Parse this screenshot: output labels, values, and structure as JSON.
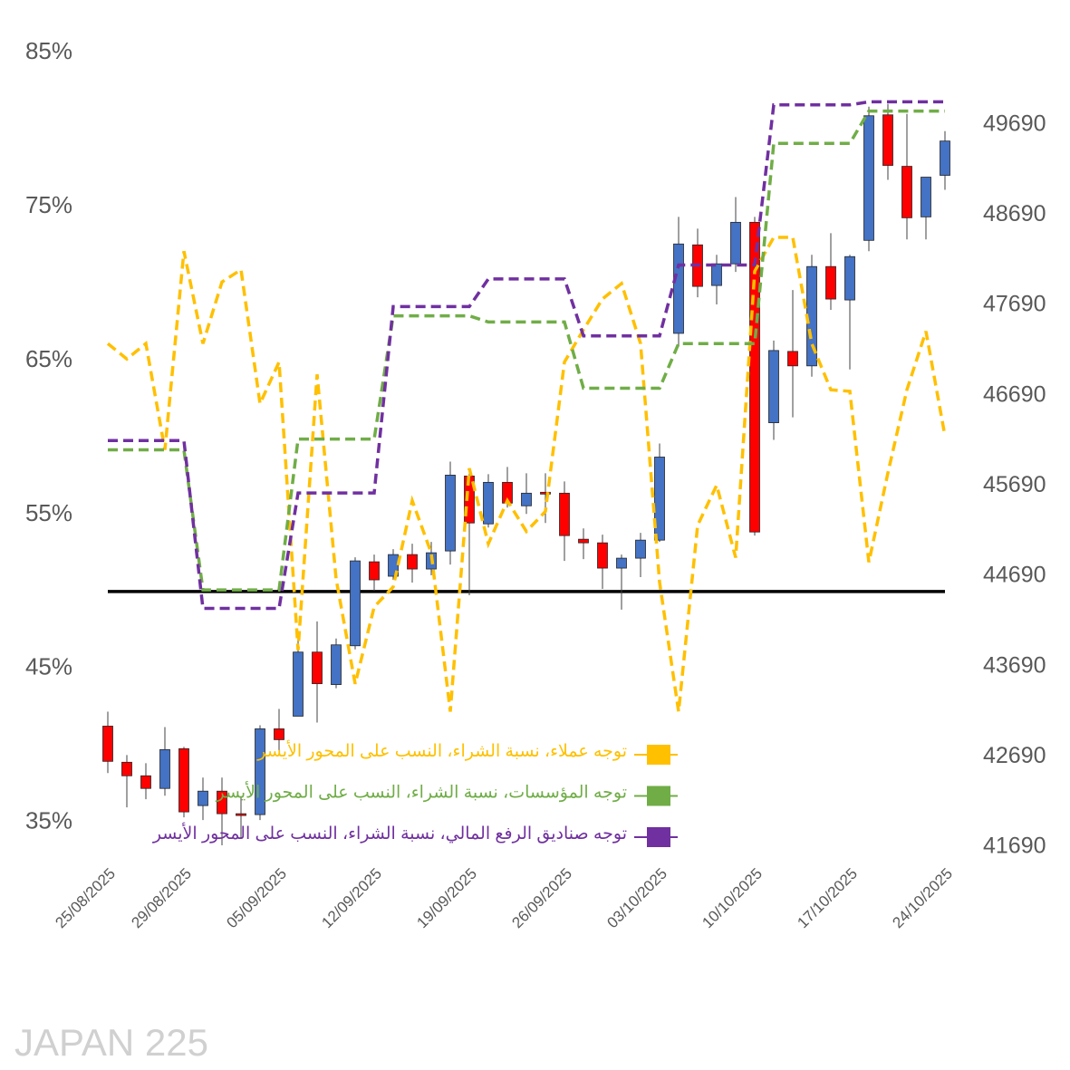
{
  "chart_data": {
    "type": "candlestick",
    "watermark": "JAPAN 225",
    "categories": [
      "25/08/2025",
      null,
      null,
      null,
      "29/08/2025",
      null,
      null,
      null,
      null,
      "05/09/2025",
      null,
      null,
      null,
      null,
      "12/09/2025",
      null,
      null,
      null,
      null,
      "19/09/2025",
      null,
      null,
      null,
      null,
      "26/09/2025",
      null,
      null,
      null,
      null,
      "03/10/2025",
      null,
      null,
      null,
      null,
      "10/10/2025",
      null,
      null,
      null,
      null,
      "17/10/2025",
      null,
      null,
      null,
      null,
      "24/10/2025"
    ],
    "candles": {
      "axis": "y2",
      "up_color": "#4472c4",
      "down_color": "#ff0000",
      "open": [
        43030,
        42630,
        42480,
        42340,
        42780,
        42150,
        42310,
        42060,
        42050,
        43000,
        43140,
        43850,
        43490,
        43920,
        44850,
        44690,
        44930,
        44770,
        44970,
        45800,
        45270,
        45730,
        45470,
        45620,
        45610,
        45100,
        45060,
        44780,
        44890,
        45090,
        47380,
        48360,
        47910,
        48150,
        48610,
        46390,
        47180,
        47020,
        48120,
        47750,
        48410,
        49800,
        49230,
        48670,
        49130
      ],
      "high": [
        43190,
        42710,
        42620,
        43020,
        42800,
        42460,
        42460,
        42240,
        43040,
        43220,
        44050,
        44190,
        44000,
        44900,
        44930,
        44990,
        45050,
        45070,
        45960,
        45860,
        45820,
        45900,
        45830,
        45830,
        45740,
        45220,
        45150,
        44930,
        45170,
        46160,
        48670,
        48540,
        48250,
        48890,
        48670,
        47300,
        47860,
        48250,
        48490,
        48250,
        49890,
        49920,
        49810,
        49110,
        49620
      ],
      "low": [
        42510,
        42130,
        42220,
        42260,
        42020,
        41990,
        41710,
        41790,
        41990,
        42740,
        43140,
        43070,
        43450,
        43880,
        44530,
        44650,
        44620,
        44700,
        44820,
        44480,
        45230,
        45450,
        45380,
        45280,
        44860,
        44880,
        44550,
        44320,
        44680,
        45070,
        47230,
        47780,
        47700,
        48060,
        45140,
        46200,
        46450,
        46900,
        47640,
        46980,
        48290,
        49080,
        48420,
        48420,
        48970
      ],
      "close": [
        42640,
        42480,
        42340,
        42770,
        42080,
        42310,
        42060,
        42040,
        43000,
        42880,
        43850,
        43500,
        43930,
        44860,
        44650,
        44930,
        44770,
        44950,
        45810,
        45280,
        45730,
        45500,
        45610,
        45600,
        45140,
        45060,
        44780,
        44890,
        45090,
        46010,
        48370,
        47900,
        48150,
        48610,
        45180,
        47190,
        47020,
        48120,
        47760,
        48230,
        49790,
        49240,
        48660,
        49110,
        49510
      ]
    },
    "series": [
      {
        "name": "توجه عملاء، نسبة الشراء، النسب على المحور الأيسر",
        "color": "#ffc000",
        "dashed": true,
        "values": [
          66.1,
          65.1,
          66.1,
          59.2,
          72.1,
          66.1,
          70.1,
          70.9,
          62.2,
          64.9,
          46.2,
          64.1,
          50.8,
          44.0,
          49.0,
          50.3,
          55.9,
          52.5,
          42.2,
          58.0,
          53.1,
          55.9,
          53.9,
          55.2,
          64.9,
          67.0,
          69.0,
          70.0,
          66.1,
          50.6,
          42.2,
          54.3,
          56.9,
          52.2,
          70.8,
          73.0,
          73.0,
          66.1,
          63.1,
          63.0,
          51.9,
          57.7,
          63.1,
          66.9,
          60.1
        ]
      },
      {
        "name": "توجه المؤسسات، نسبة الشراء، النسب على المحور الأيسر",
        "color": "#70ad47",
        "dashed": true,
        "values": [
          59.2,
          59.2,
          59.2,
          59.2,
          59.2,
          50.1,
          50.1,
          50.1,
          50.1,
          50.1,
          59.9,
          59.9,
          59.9,
          59.9,
          59.9,
          67.9,
          67.9,
          67.9,
          67.9,
          67.9,
          67.5,
          67.5,
          67.5,
          67.5,
          67.5,
          63.2,
          63.2,
          63.2,
          63.2,
          63.2,
          66.1,
          66.1,
          66.1,
          66.1,
          66.1,
          79.1,
          79.1,
          79.1,
          79.1,
          79.1,
          81.2,
          81.2,
          81.2,
          81.2,
          81.2
        ]
      },
      {
        "name": "توجه صناديق الرفع المالي، نسبة الشراء، النسب على المحور الأيسر",
        "color": "#7030a0",
        "dashed": true,
        "values": [
          59.8,
          59.8,
          59.8,
          59.8,
          59.8,
          48.9,
          48.9,
          48.9,
          48.9,
          48.9,
          56.4,
          56.4,
          56.4,
          56.4,
          56.4,
          68.5,
          68.5,
          68.5,
          68.5,
          68.5,
          70.3,
          70.3,
          70.3,
          70.3,
          70.3,
          66.6,
          66.6,
          66.6,
          66.6,
          66.6,
          71.2,
          71.2,
          71.2,
          71.2,
          71.2,
          81.6,
          81.6,
          81.6,
          81.6,
          81.6,
          81.8,
          81.8,
          81.8,
          81.8,
          81.8
        ]
      }
    ],
    "reference_line": {
      "value": 50,
      "color": "#000000"
    },
    "ylim": [
      33.4,
      85
    ],
    "yticks": [
      {
        "value": 35,
        "label": "35%"
      },
      {
        "value": 45,
        "label": "45%"
      },
      {
        "value": 55,
        "label": "55%"
      },
      {
        "value": 65,
        "label": "65%"
      },
      {
        "value": 75,
        "label": "75%"
      },
      {
        "value": 85,
        "label": "85%"
      }
    ],
    "y2lim": [
      41690,
      50490
    ],
    "y2ticks": [
      41690,
      42690,
      43690,
      44690,
      45690,
      46690,
      47690,
      48690,
      49690
    ],
    "grid": false
  }
}
